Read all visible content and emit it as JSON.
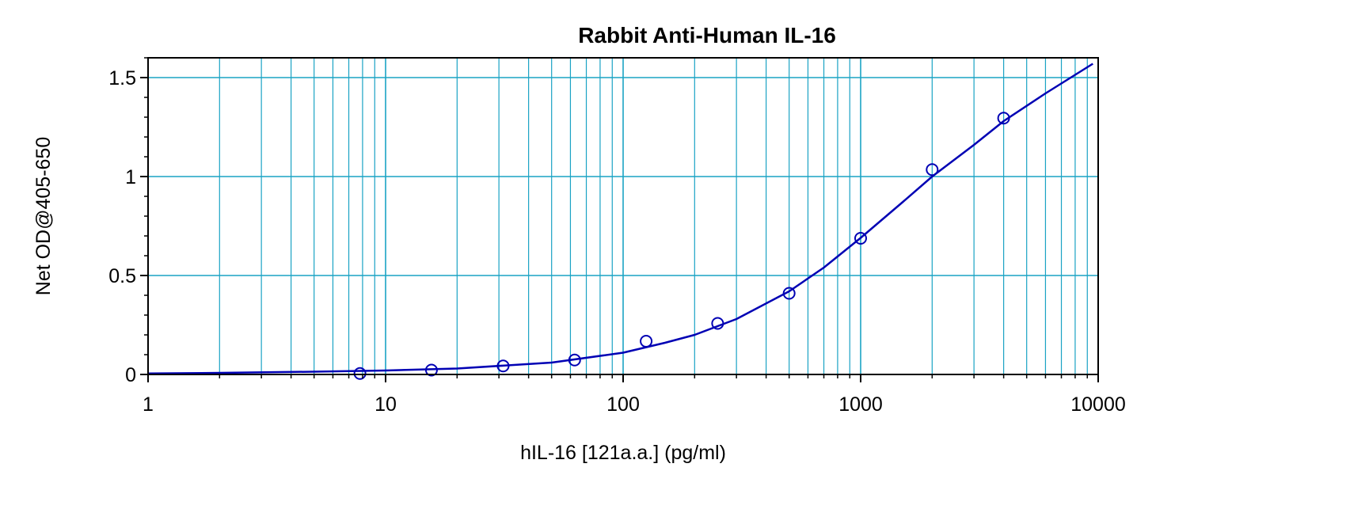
{
  "chart_data": {
    "type": "scatter",
    "title": "Rabbit Anti-Human IL-16",
    "xlabel": "hIL-16 [121a.a.] (pg/ml)",
    "ylabel": "Net OD@405-650",
    "x_scale": "log",
    "xlim": [
      1,
      10000
    ],
    "ylim": [
      0,
      1.6
    ],
    "x_ticks": [
      1,
      10,
      100,
      1000,
      10000
    ],
    "x_tick_labels": [
      "1",
      "10",
      "100",
      "1000",
      "10000"
    ],
    "y_ticks": [
      0,
      0.5,
      1,
      1.5
    ],
    "y_tick_labels": [
      "0",
      "0.5",
      "1",
      "1.5"
    ],
    "grid": true,
    "colors": {
      "grid": "#1aa3c4",
      "series": "#0000b4",
      "axis": "#000000"
    },
    "series": [
      {
        "type": "scatter",
        "marker": "open-circle",
        "x": [
          7.8,
          15.6,
          31.25,
          62.5,
          125,
          250,
          500,
          1000,
          2000,
          4000
        ],
        "y": [
          0.005,
          0.022,
          0.043,
          0.073,
          0.168,
          0.258,
          0.41,
          0.688,
          1.035,
          1.295
        ]
      },
      {
        "type": "line",
        "x": [
          1,
          2,
          5,
          10,
          20,
          50,
          100,
          150,
          200,
          300,
          500,
          700,
          1000,
          1500,
          2000,
          3000,
          4000,
          6000,
          9500
        ],
        "y": [
          0.005,
          0.008,
          0.014,
          0.02,
          0.03,
          0.06,
          0.11,
          0.16,
          0.2,
          0.28,
          0.42,
          0.54,
          0.69,
          0.87,
          1.0,
          1.16,
          1.28,
          1.42,
          1.57
        ]
      }
    ]
  }
}
